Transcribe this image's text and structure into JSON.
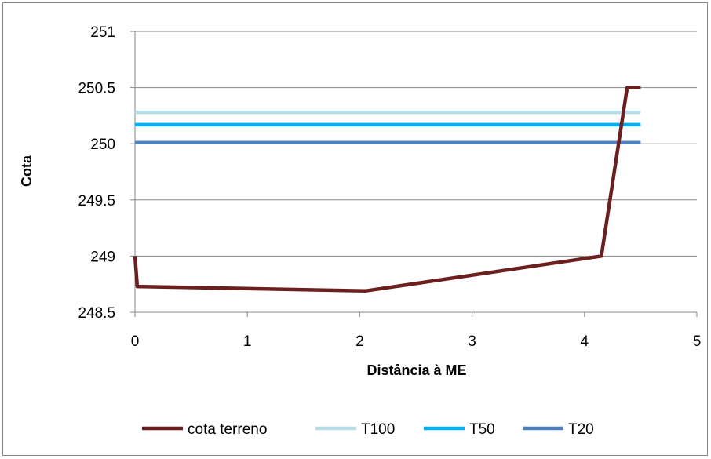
{
  "chart_data": {
    "type": "line",
    "title": "",
    "xlabel": "Distância à ME",
    "ylabel": "Cota",
    "xlim": [
      0,
      5
    ],
    "ylim": [
      248.5,
      251
    ],
    "x_ticks": [
      0,
      1,
      2,
      3,
      4,
      5
    ],
    "y_ticks": [
      248.5,
      249,
      249.5,
      250,
      250.5,
      251
    ],
    "x_tick_labels": [
      "0",
      "1",
      "2",
      "3",
      "4",
      "5"
    ],
    "y_tick_labels": [
      "248.5",
      "249",
      "249.5",
      "250",
      "250.5",
      "251"
    ],
    "grid": {
      "horizontal": true,
      "vertical": false
    },
    "legend_position": "bottom",
    "series": [
      {
        "name": "cota terreno",
        "color": "#6b1f1f",
        "points": [
          [
            0,
            249.0
          ],
          [
            0.02,
            248.73
          ],
          [
            2.05,
            248.69
          ],
          [
            4.15,
            249.0
          ],
          [
            4.38,
            250.5
          ],
          [
            4.5,
            250.5
          ]
        ]
      },
      {
        "name": "T100",
        "color": "#b7dde8",
        "points": [
          [
            0,
            250.28
          ],
          [
            4.5,
            250.28
          ]
        ]
      },
      {
        "name": "T50",
        "color": "#00b0f0",
        "points": [
          [
            0,
            250.17
          ],
          [
            4.5,
            250.17
          ]
        ]
      },
      {
        "name": "T20",
        "color": "#4f81bd",
        "points": [
          [
            0,
            250.01
          ],
          [
            4.5,
            250.01
          ]
        ]
      }
    ]
  }
}
